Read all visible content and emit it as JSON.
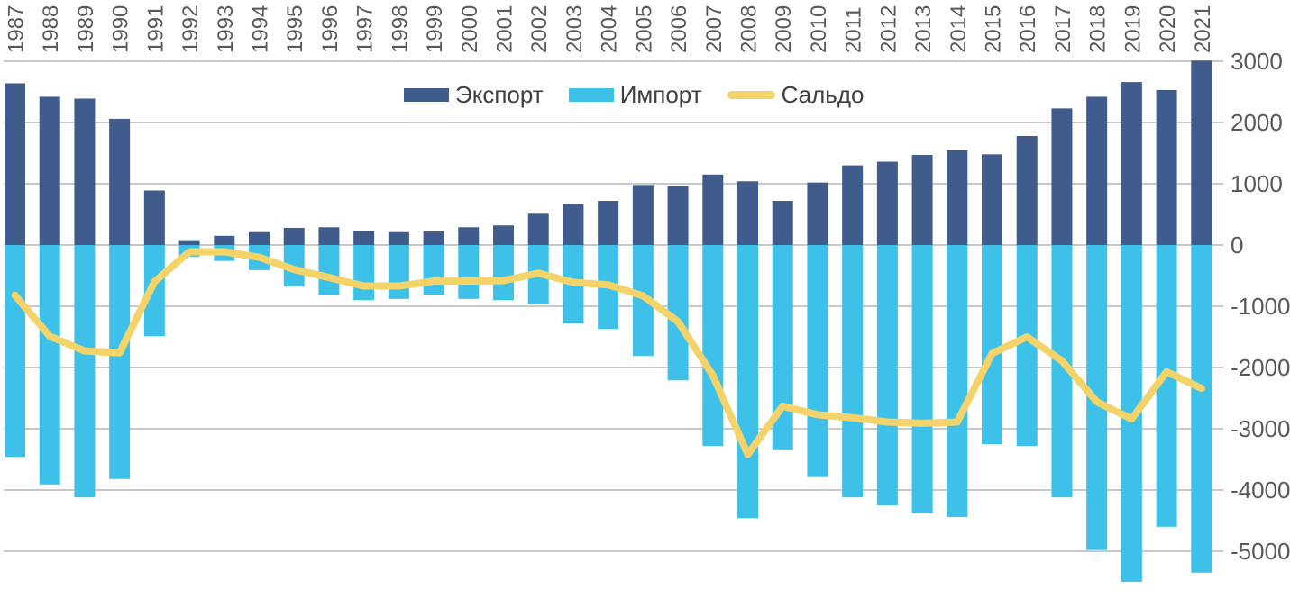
{
  "chart_data": {
    "type": "bar",
    "subtype": "combo-bar-line",
    "title": "",
    "categories": [
      "1987",
      "1988",
      "1989",
      "1990",
      "1991",
      "1992",
      "1993",
      "1994",
      "1995",
      "1996",
      "1997",
      "1998",
      "1999",
      "2000",
      "2001",
      "2002",
      "2003",
      "2004",
      "2005",
      "2006",
      "2007",
      "2008",
      "2009",
      "2010",
      "2011",
      "2012",
      "2013",
      "2014",
      "2015",
      "2016",
      "2017",
      "2018",
      "2019",
      "2020",
      "2021"
    ],
    "series": [
      {
        "name": "Экспорт",
        "type": "bar",
        "color": "#3F5C8C",
        "values": [
          2640,
          2420,
          2390,
          2060,
          890,
          80,
          150,
          210,
          280,
          290,
          230,
          210,
          220,
          290,
          320,
          510,
          670,
          720,
          980,
          960,
          1150,
          1040,
          720,
          1020,
          1300,
          1360,
          1470,
          1550,
          1480,
          1780,
          2230,
          2420,
          2660,
          2530,
          3010
        ]
      },
      {
        "name": "Импорт",
        "type": "bar",
        "color": "#3EC1E9",
        "values": [
          -3460,
          -3910,
          -4120,
          -3820,
          -1490,
          -190,
          -260,
          -410,
          -680,
          -820,
          -900,
          -880,
          -810,
          -880,
          -900,
          -970,
          -1280,
          -1370,
          -1810,
          -2210,
          -3280,
          -4460,
          -3350,
          -3790,
          -4120,
          -4250,
          -4380,
          -4440,
          -3250,
          -3280,
          -4120,
          -4980,
          -5500,
          -4600,
          -5350
        ]
      },
      {
        "name": "Сальдо",
        "type": "line",
        "color": "#F4D36A",
        "values": [
          -820,
          -1490,
          -1730,
          -1760,
          -600,
          -110,
          -110,
          -200,
          -400,
          -530,
          -670,
          -670,
          -590,
          -590,
          -580,
          -460,
          -610,
          -650,
          -830,
          -1250,
          -2130,
          -3420,
          -2630,
          -2770,
          -2820,
          -2890,
          -2910,
          -2890,
          -1770,
          -1500,
          -1890,
          -2560,
          -2840,
          -2070,
          -2340
        ]
      }
    ],
    "xlabel": "",
    "ylabel": "",
    "x_axis": {
      "position": "top",
      "label_rotation": -90
    },
    "y_axis": {
      "position": "right",
      "ticks": [
        3000,
        2000,
        1000,
        0,
        -1000,
        -2000,
        -3000,
        -4000,
        -5000
      ],
      "ylim": [
        -5700,
        3050
      ]
    },
    "grid": true,
    "legend_position": "top-center",
    "colors": {
      "grid": "#C9C9C9",
      "axis_text": "#595959",
      "legend_text": "#404040",
      "background": "#FFFFFF"
    }
  }
}
